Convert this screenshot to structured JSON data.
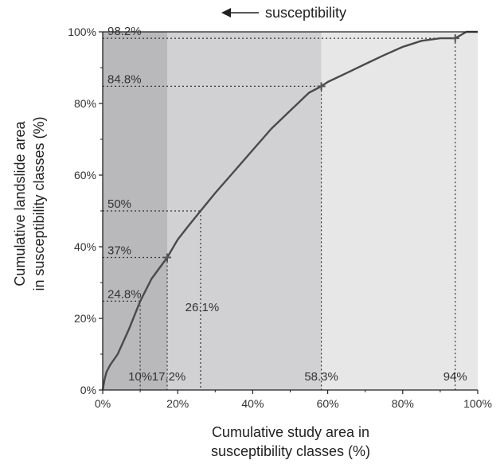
{
  "chart_data": {
    "type": "line",
    "title": "",
    "direction_label": "susceptibility",
    "xlabel": [
      "Cumulative study area in",
      "susceptibility classes (%)"
    ],
    "ylabel": [
      "Cumulative landslide area",
      "in susceptibility classes (%)"
    ],
    "xlim": [
      0,
      100
    ],
    "ylim": [
      0,
      100
    ],
    "x_ticks": [
      "0%",
      "20%",
      "40%",
      "60%",
      "80%",
      "100%"
    ],
    "y_ticks": [
      "0%",
      "20%",
      "40%",
      "60%",
      "80%",
      "100%"
    ],
    "series": [
      {
        "x": [
          0,
          0.5,
          1,
          2,
          4,
          7,
          10,
          13,
          17.2,
          20,
          23,
          26.1,
          30,
          35,
          40,
          45,
          50,
          55,
          58.3,
          60,
          65,
          70,
          75,
          80,
          85,
          90,
          94,
          97,
          100
        ],
        "y": [
          0,
          3,
          5,
          7,
          10,
          17,
          24.8,
          31,
          37,
          42,
          46,
          50,
          55,
          61,
          67,
          73,
          78,
          83,
          84.8,
          86,
          88.5,
          91,
          93.5,
          95.8,
          97.5,
          98.2,
          98.2,
          100,
          100
        ]
      }
    ],
    "class_bands": [
      {
        "from": 0,
        "to": 17.2,
        "color": "#b9b9bb"
      },
      {
        "from": 17.2,
        "to": 58.3,
        "color": "#d1d1d3"
      },
      {
        "from": 58.3,
        "to": 100,
        "color": "#e7e7e8"
      }
    ],
    "markers": [
      {
        "x": 17.2,
        "y": 37
      },
      {
        "x": 58.3,
        "y": 84.8
      },
      {
        "x": 94,
        "y": 98.2
      }
    ],
    "guides": [
      {
        "x": 10,
        "y": 24.8,
        "x_label": "10%",
        "y_label": "24.8%"
      },
      {
        "x": 17.2,
        "y": 37,
        "x_label": "17.2%",
        "y_label": "37%"
      },
      {
        "x": 26.1,
        "y": 50,
        "x_label": "26.1%",
        "y_label": "50%"
      },
      {
        "x": 58.3,
        "y": 84.8,
        "x_label": "58.3%",
        "y_label": "84.8%"
      },
      {
        "x": 94,
        "y": 98.2,
        "x_label": "94%",
        "y_label": "98.2%"
      }
    ],
    "colors": {
      "line": "#4a4a4a",
      "guide": "#333333",
      "axis": "#222222"
    }
  }
}
